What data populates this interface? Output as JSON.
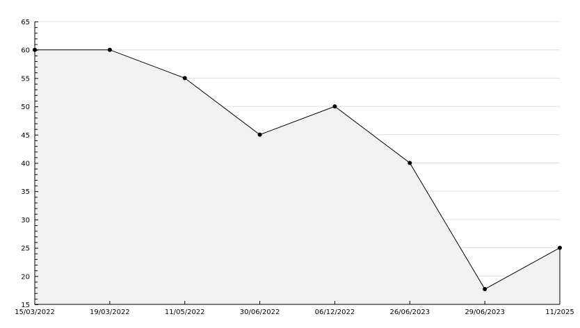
{
  "chart_data": {
    "type": "area",
    "title": "",
    "xlabel": "",
    "ylabel": "",
    "categories": [
      "15/03/2022",
      "19/03/2022",
      "11/05/2022",
      "30/06/2022",
      "06/12/2022",
      "26/06/2023",
      "29/06/2023",
      "11/2025"
    ],
    "values": [
      60,
      60,
      55,
      45,
      50,
      40,
      17.7,
      25
    ],
    "ylim": [
      15,
      65
    ],
    "yticks": [
      15,
      20,
      25,
      30,
      35,
      40,
      45,
      50,
      55,
      60,
      65
    ],
    "grid": true,
    "colors": {
      "line": "#000000",
      "fill": "#f1f1f1",
      "grid": "#dddddd",
      "marker": "#000000"
    }
  }
}
